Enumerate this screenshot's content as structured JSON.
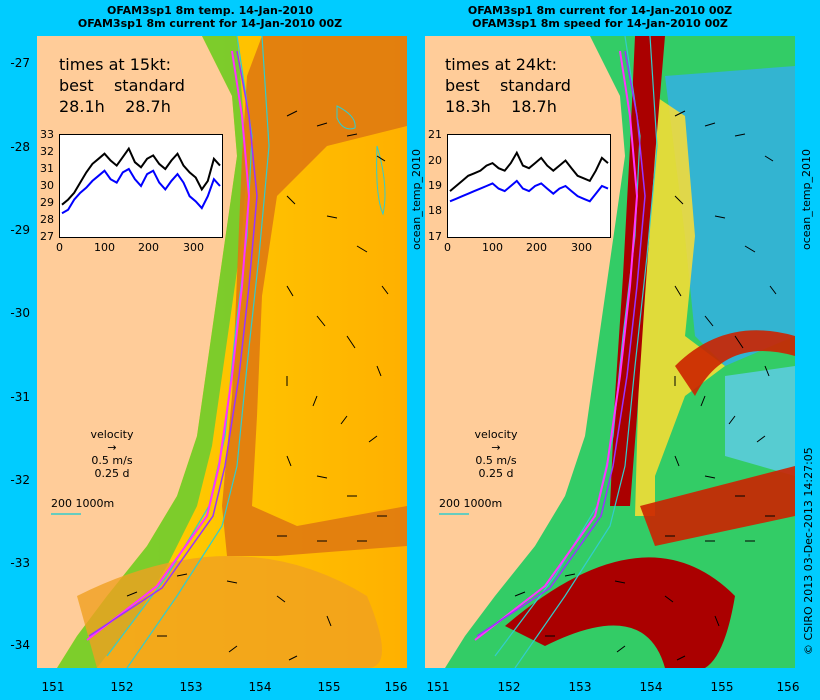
{
  "left_panel": {
    "title_line1": "OFAM3sp1 8m temp. 14-Jan-2010",
    "title_line2": "OFAM3sp1 8m current for 14-Jan-2010 00Z",
    "times_heading": "times at 15kt:",
    "best_label": "best",
    "standard_label": "standard",
    "best_value": "28.1h",
    "standard_value": "28.7h",
    "inset_y_ticks": [
      "33",
      "32",
      "31",
      "30",
      "29",
      "28",
      "27"
    ],
    "inset_x_ticks": [
      "0",
      "100",
      "200",
      "300"
    ],
    "velocity_label": "velocity",
    "velocity_speed": "0.5 m/s",
    "velocity_time": "0.25 d",
    "depth_label": "200  1000m",
    "side_label": "ocean_temp_2010"
  },
  "right_panel": {
    "title_line1": "OFAM3sp1 8m current for 14-Jan-2010 00Z",
    "title_line2": "OFAM3sp1 8m speed for 14-Jan-2010 00Z",
    "times_heading": "times at 24kt:",
    "best_label": "best",
    "standard_label": "standard",
    "best_value": "18.3h",
    "standard_value": "18.7h",
    "inset_y_ticks": [
      "21",
      "20",
      "19",
      "18",
      "17"
    ],
    "inset_x_ticks": [
      "0",
      "100",
      "200",
      "300"
    ],
    "velocity_label": "velocity",
    "velocity_speed": "0.5 m/s",
    "velocity_time": "0.25 d",
    "depth_label": "200  1000m",
    "side_label": "ocean_temp_2010",
    "credit": "© CSIRO 2013   03-Dec-2013 14:27:05"
  },
  "latitude_ticks": [
    "-27",
    "-28",
    "-29",
    "-30",
    "-31",
    "-32",
    "-33",
    "-34"
  ],
  "longitude_ticks": [
    "151",
    "152",
    "153",
    "154",
    "155",
    "156"
  ],
  "colors": {
    "background": "#00ccff",
    "land": "#ffcc99",
    "route_best": "#ff33ff",
    "route_standard": "#9933ff",
    "isobath": "#33cccc"
  },
  "chart_data": [
    {
      "type": "line",
      "panel": "left",
      "x_range": [
        0,
        350
      ],
      "ylim": [
        27,
        33
      ],
      "series": [
        {
          "color": "black",
          "values": [
            28.9,
            29.2,
            29.6,
            30.2,
            30.8,
            31.3,
            31.6,
            31.9,
            31.5,
            31.2,
            31.7,
            32.2,
            31.4,
            31.1,
            31.6,
            31.8,
            31.3,
            31.0,
            31.5,
            31.9,
            31.2,
            30.8,
            30.5,
            29.8,
            30.3,
            31.6,
            31.2
          ]
        },
        {
          "color": "blue",
          "values": [
            28.4,
            28.6,
            29.2,
            29.6,
            29.9,
            30.3,
            30.6,
            30.9,
            30.4,
            30.2,
            30.8,
            31.0,
            30.4,
            30.0,
            30.7,
            30.9,
            30.2,
            29.8,
            30.3,
            30.7,
            30.2,
            29.4,
            29.1,
            28.7,
            29.4,
            30.4,
            30.0
          ]
        }
      ]
    },
    {
      "type": "line",
      "panel": "right",
      "x_range": [
        0,
        350
      ],
      "ylim": [
        17,
        21
      ],
      "series": [
        {
          "color": "black",
          "values": [
            18.8,
            19.0,
            19.2,
            19.4,
            19.5,
            19.6,
            19.8,
            19.9,
            19.7,
            19.6,
            19.9,
            20.3,
            19.8,
            19.7,
            19.9,
            20.1,
            19.8,
            19.6,
            19.8,
            20.0,
            19.7,
            19.4,
            19.3,
            19.2,
            19.6,
            20.1,
            19.9
          ]
        },
        {
          "color": "blue",
          "values": [
            18.4,
            18.5,
            18.6,
            18.7,
            18.8,
            18.9,
            19.0,
            19.1,
            18.9,
            18.8,
            19.0,
            19.2,
            18.9,
            18.8,
            19.0,
            19.1,
            18.9,
            18.7,
            18.9,
            19.0,
            18.8,
            18.6,
            18.5,
            18.4,
            18.7,
            19.0,
            18.9
          ]
        }
      ]
    }
  ]
}
